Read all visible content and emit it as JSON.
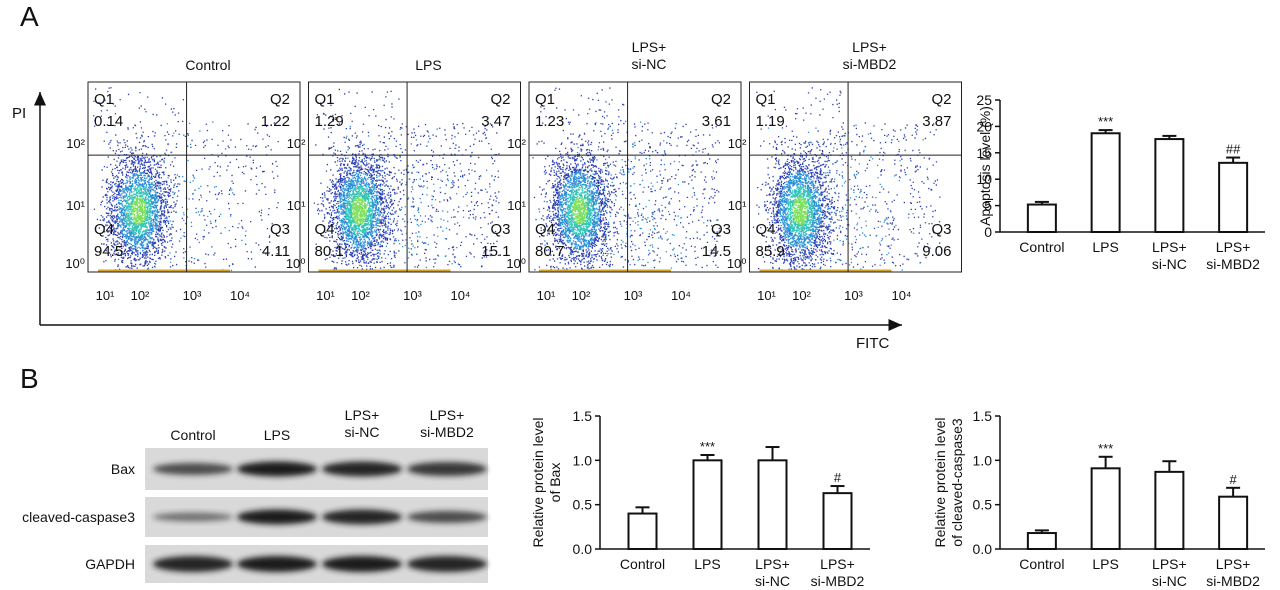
{
  "panel_labels": [
    "A",
    "B"
  ],
  "flow_cytometry": {
    "y_axis_label": "PI",
    "x_axis_label": "FITC",
    "x_ticks": [
      "10¹",
      "10²",
      "10³",
      "10⁴"
    ],
    "y_ticks": [
      "10²",
      "10¹",
      "10⁰"
    ],
    "panels": [
      {
        "title": "Control",
        "quadrants": [
          {
            "label": "Q1",
            "value": 0.14
          },
          {
            "label": "Q2",
            "value": 1.22
          },
          {
            "label": "Q3",
            "value": 4.11
          },
          {
            "label": "Q4",
            "value": 94.5
          }
        ]
      },
      {
        "title": "LPS",
        "quadrants": [
          {
            "label": "Q1",
            "value": 1.29
          },
          {
            "label": "Q2",
            "value": 3.47
          },
          {
            "label": "Q3",
            "value": 15.1
          },
          {
            "label": "Q4",
            "value": 80.1
          }
        ]
      },
      {
        "title": "LPS+\nsi-NC",
        "quadrants": [
          {
            "label": "Q1",
            "value": 1.23
          },
          {
            "label": "Q2",
            "value": 3.61
          },
          {
            "label": "Q3",
            "value": 14.5
          },
          {
            "label": "Q4",
            "value": 80.7
          }
        ]
      },
      {
        "title": "LPS+\nsi-MBD2",
        "quadrants": [
          {
            "label": "Q1",
            "value": 1.19
          },
          {
            "label": "Q2",
            "value": 3.87
          },
          {
            "label": "Q3",
            "value": 9.06
          },
          {
            "label": "Q4",
            "value": 85.9
          }
        ]
      }
    ]
  },
  "western_blot": {
    "columns": [
      "Control",
      "LPS",
      "LPS+\nsi-NC",
      "LPS+\nsi-MBD2"
    ],
    "rows": [
      "Bax",
      "cleaved-caspase3",
      "GAPDH"
    ]
  },
  "chart_data": [
    {
      "type": "bar",
      "y_label": "Apoptosis level (%)",
      "categories": [
        "Control",
        "LPS",
        "LPS+\nsi-NC",
        "LPS+\nsi-MBD2"
      ],
      "values": [
        5.2,
        18.7,
        17.6,
        13.1
      ],
      "errors": [
        0.5,
        0.6,
        0.6,
        1.0
      ],
      "significance": [
        null,
        "***",
        null,
        "##"
      ],
      "ylim": [
        0,
        25
      ],
      "yticks": [
        0,
        5,
        10,
        15,
        20,
        25
      ],
      "color": "#ffffff"
    },
    {
      "type": "bar",
      "y_label": "Relative protein level\nof Bax",
      "categories": [
        "Control",
        "LPS",
        "LPS+\nsi-NC",
        "LPS+\nsi-MBD2"
      ],
      "values": [
        0.4,
        1.0,
        1.0,
        0.63
      ],
      "errors": [
        0.07,
        0.06,
        0.15,
        0.08
      ],
      "significance": [
        null,
        "***",
        null,
        "#"
      ],
      "ylim": [
        0,
        1.5
      ],
      "yticks": [
        {
          "value": 0,
          "label": "0.0"
        },
        0.5,
        {
          "value": 1,
          "label": "1.0"
        },
        1.5
      ],
      "color": "#ffffff"
    },
    {
      "type": "bar",
      "y_label": "Relative protein level\nof cleaved-caspase3",
      "categories": [
        "Control",
        "LPS",
        "LPS+\nsi-NC",
        "LPS+\nsi-MBD2"
      ],
      "values": [
        0.18,
        0.91,
        0.87,
        0.59
      ],
      "errors": [
        0.03,
        0.13,
        0.12,
        0.1
      ],
      "significance": [
        null,
        "***",
        null,
        "#"
      ],
      "ylim": [
        0,
        1.5
      ],
      "yticks": [
        {
          "value": 0,
          "label": "0.0"
        },
        0.5,
        {
          "value": 1,
          "label": "1.0"
        },
        1.5
      ],
      "color": "#ffffff"
    }
  ]
}
